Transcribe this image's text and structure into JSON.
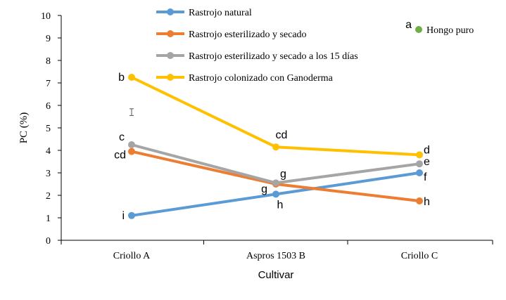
{
  "chart_data": {
    "type": "line",
    "xlabel": "Cultivar",
    "ylabel": "PC (%)",
    "ylim": [
      0,
      10
    ],
    "yticks": [
      "0",
      "1",
      "2",
      "3",
      "4",
      "5",
      "6",
      "7",
      "8",
      "9",
      "10"
    ],
    "categories": [
      "Criollo A",
      "Aspros 1503 B",
      "Criollo C"
    ],
    "grid": false,
    "legend_position": "top",
    "series": [
      {
        "name": "Rastrojo natural",
        "color": "#5B9BD5",
        "values": [
          1.1,
          2.05,
          3.0
        ],
        "letters": [
          "i",
          "h",
          "f"
        ]
      },
      {
        "name": "Rastrojo esterilizado y secado",
        "color": "#ED7D31",
        "values": [
          3.95,
          2.5,
          1.75
        ],
        "letters": [
          "cd",
          "g",
          "h"
        ]
      },
      {
        "name": "Rastrojo esterilizado y secado a los 15 días",
        "color": "#A5A5A5",
        "values": [
          4.25,
          2.55,
          3.4
        ],
        "letters": [
          "c",
          "g",
          "e"
        ]
      },
      {
        "name": "Rastrojo colonizado con Ganoderma",
        "color": "#FFC000",
        "values": [
          7.25,
          4.15,
          3.8
        ],
        "letters": [
          "b",
          "cd",
          "d"
        ]
      }
    ],
    "reference_point": {
      "name": "Hongo puro",
      "letter": "a",
      "color": "#70AD47"
    },
    "error_bar": {
      "category": "Criollo A",
      "center": 5.7,
      "half_width": 0.15
    }
  }
}
